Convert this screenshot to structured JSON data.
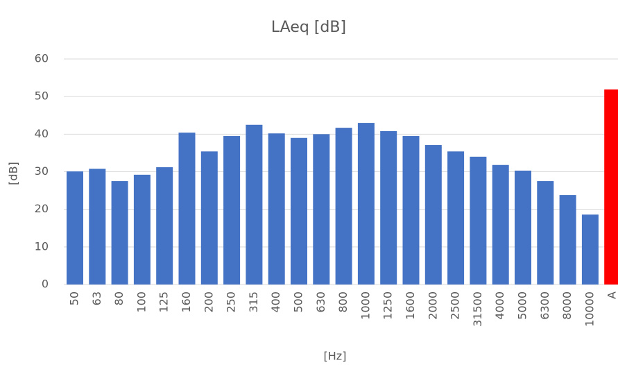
{
  "chart_data": {
    "type": "bar",
    "title": "LAeq [dB]",
    "y_label": "[dB]",
    "x_label": "[Hz]",
    "categories": [
      "50",
      "63",
      "80",
      "100",
      "125",
      "160",
      "200",
      "250",
      "315",
      "400",
      "500",
      "630",
      "800",
      "1000",
      "1250",
      "1600",
      "2000",
      "2500",
      "31500",
      "4000",
      "5000",
      "6300",
      "8000",
      "10000",
      "A"
    ],
    "values": [
      30.1,
      30.8,
      27.5,
      29.2,
      31.2,
      40.4,
      35.4,
      39.5,
      42.5,
      40.2,
      39,
      40,
      41.7,
      43,
      40.8,
      39.5,
      37.1,
      35.4,
      34,
      31.8,
      30.3,
      27.5,
      23.8,
      18.6,
      51.9
    ],
    "colors": [
      "#4472c4",
      "#4472c4",
      "#4472c4",
      "#4472c4",
      "#4472c4",
      "#4472c4",
      "#4472c4",
      "#4472c4",
      "#4472c4",
      "#4472c4",
      "#4472c4",
      "#4472c4",
      "#4472c4",
      "#4472c4",
      "#4472c4",
      "#4472c4",
      "#4472c4",
      "#4472c4",
      "#4472c4",
      "#4472c4",
      "#4472c4",
      "#4472c4",
      "#4472c4",
      "#4472c4",
      "#ff0000"
    ],
    "ylim": [
      0,
      60
    ],
    "yticks": [
      0,
      10,
      20,
      30,
      40,
      50,
      60
    ],
    "grid": true
  }
}
